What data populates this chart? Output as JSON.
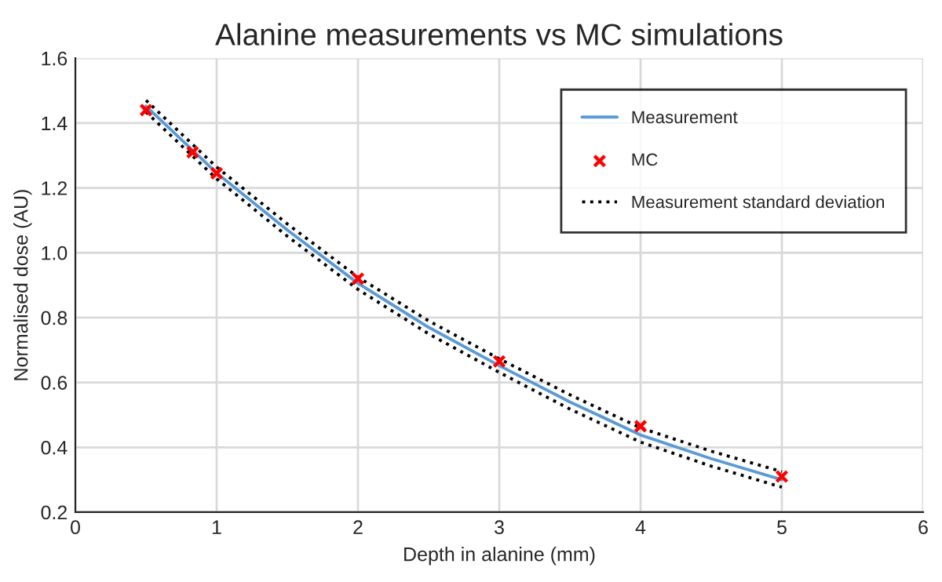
{
  "chart_data": {
    "type": "line",
    "title": "Alanine measurements vs MC simulations",
    "xlabel": "Depth in alanine (mm)",
    "ylabel": "Normalised dose (AU)",
    "xlim": [
      0,
      6
    ],
    "xticks": [
      0,
      1,
      2,
      3,
      4,
      5,
      6
    ],
    "ylim": [
      0.2,
      1.6
    ],
    "yticks": [
      {
        "value": 0.2,
        "label": "0.2"
      },
      {
        "value": 0.4,
        "label": "0.4"
      },
      {
        "value": 0.6,
        "label": "0.6"
      },
      {
        "value": 0.8,
        "label": "0.8"
      },
      {
        "value": 1.0,
        "label": "1.0"
      },
      {
        "value": 1.2,
        "label": "1.2"
      },
      {
        "value": 1.4,
        "label": "1.4"
      },
      {
        "value": 1.6,
        "label": "1.6"
      }
    ],
    "grid": true,
    "legend": "top right",
    "series": [
      {
        "name": "Measurement",
        "color": "#5b9bd5",
        "line_style": "solid",
        "x": [
          0.5,
          1,
          1.5,
          2,
          2.5,
          3,
          3.5,
          4,
          4.5,
          5
        ],
        "values": [
          1.452,
          1.246,
          1.07,
          0.906,
          0.77,
          0.652,
          0.54,
          0.438,
          0.365,
          0.3
        ]
      },
      {
        "name": "MC",
        "type": "scatter",
        "color": "#ff0000",
        "marker": "cross",
        "x": [
          0.5,
          0.83,
          1,
          2,
          3,
          4,
          5
        ],
        "values": [
          1.44,
          1.31,
          1.245,
          0.92,
          0.665,
          0.465,
          0.31
        ]
      },
      {
        "name": "Measurement standard deviation",
        "color": "#000000",
        "line_style": "dotted",
        "x": [
          0.5,
          1,
          1.5,
          2,
          2.5,
          3,
          3.5,
          4,
          4.5,
          5
        ],
        "values": [
          1.47,
          1.264,
          1.089,
          0.925,
          0.79,
          0.673,
          0.562,
          0.46,
          0.388,
          0.325
        ]
      },
      {
        "color": "#000000",
        "line_style": "dotted",
        "x": [
          0.5,
          1,
          1.5,
          2,
          2.5,
          3,
          3.5,
          4,
          4.5,
          5
        ],
        "values": [
          1.434,
          1.228,
          1.051,
          0.887,
          0.75,
          0.631,
          0.518,
          0.416,
          0.342,
          0.277
        ]
      }
    ]
  }
}
